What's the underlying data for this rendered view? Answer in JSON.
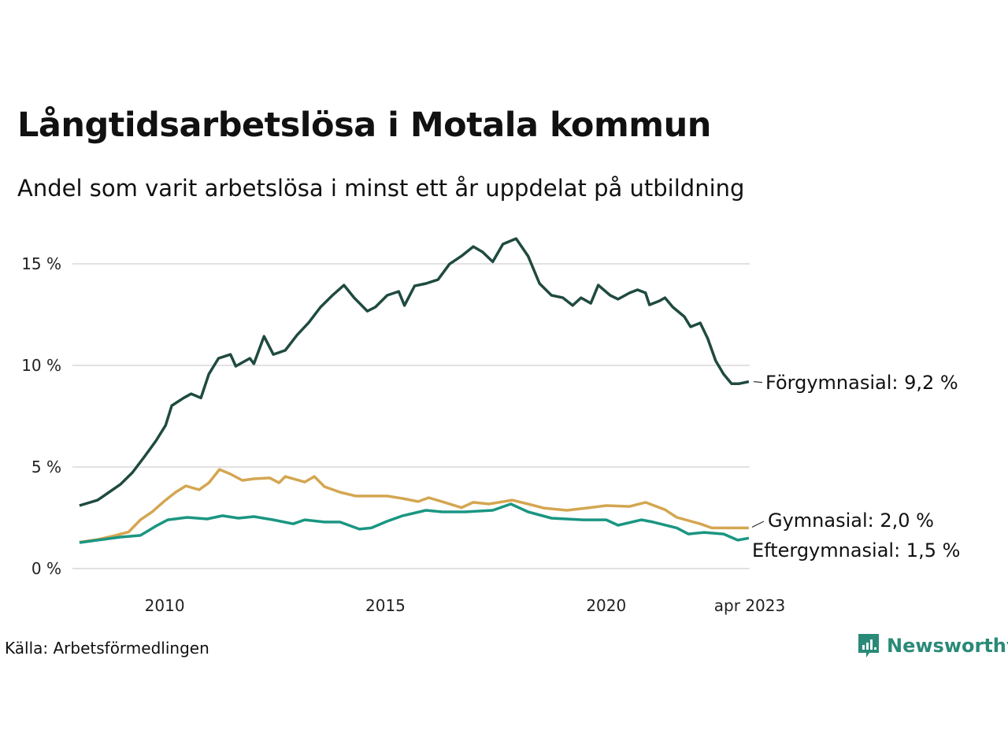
{
  "colors": {
    "forgymnasial": "#1f4a40",
    "gymnasial": "#d4a651",
    "eftergymnasial": "#1a9682",
    "grid": "#e2e2e2",
    "brand": "#2a8a78"
  },
  "source": "Källa: Arbetsförmedlingen",
  "brand": "Newsworthy",
  "chart_data": {
    "type": "line",
    "title": "Långtidsarbetslösa i Motala kommun",
    "subtitle": "Andel som varit arbetslösa i minst ett år uppdelat på utbildning",
    "xlabel": "",
    "ylabel": "",
    "xlim": [
      2008.0,
      2023.25
    ],
    "ylim": [
      0,
      16.5
    ],
    "grid": true,
    "x_ticks": [
      {
        "value": 2010,
        "label": "2010"
      },
      {
        "value": 2015,
        "label": "2015"
      },
      {
        "value": 2020,
        "label": "2020"
      },
      {
        "value": 2023.25,
        "label": "apr 2023"
      }
    ],
    "y_ticks": [
      {
        "value": 0,
        "label": "0 %"
      },
      {
        "value": 5,
        "label": "5 %"
      },
      {
        "value": 10,
        "label": "10 %"
      },
      {
        "value": 15,
        "label": "15 %"
      }
    ],
    "series": [
      {
        "name": "Förgymnasial",
        "key": "forgymnasial",
        "end_label": "Förgymnasial: 9,2 %",
        "points": [
          [
            2008.07,
            3.1
          ],
          [
            2008.48,
            3.37
          ],
          [
            2008.74,
            3.76
          ],
          [
            2009.0,
            4.15
          ],
          [
            2009.27,
            4.73
          ],
          [
            2009.54,
            5.5
          ],
          [
            2009.8,
            6.28
          ],
          [
            2010.02,
            7.05
          ],
          [
            2010.16,
            8.02
          ],
          [
            2010.43,
            8.4
          ],
          [
            2010.6,
            8.6
          ],
          [
            2010.82,
            8.4
          ],
          [
            2011.0,
            9.57
          ],
          [
            2011.22,
            10.35
          ],
          [
            2011.49,
            10.54
          ],
          [
            2011.61,
            9.96
          ],
          [
            2011.93,
            10.35
          ],
          [
            2012.02,
            10.08
          ],
          [
            2012.25,
            11.43
          ],
          [
            2012.46,
            10.54
          ],
          [
            2012.73,
            10.74
          ],
          [
            2013.0,
            11.5
          ],
          [
            2013.26,
            12.1
          ],
          [
            2013.53,
            12.87
          ],
          [
            2013.8,
            13.45
          ],
          [
            2014.06,
            13.95
          ],
          [
            2014.29,
            13.33
          ],
          [
            2014.59,
            12.67
          ],
          [
            2014.77,
            12.87
          ],
          [
            2015.04,
            13.45
          ],
          [
            2015.3,
            13.64
          ],
          [
            2015.43,
            12.95
          ],
          [
            2015.66,
            13.91
          ],
          [
            2015.92,
            14.03
          ],
          [
            2016.19,
            14.22
          ],
          [
            2016.45,
            14.99
          ],
          [
            2016.72,
            15.38
          ],
          [
            2016.99,
            15.85
          ],
          [
            2017.2,
            15.58
          ],
          [
            2017.43,
            15.1
          ],
          [
            2017.66,
            15.97
          ],
          [
            2017.96,
            16.24
          ],
          [
            2018.23,
            15.38
          ],
          [
            2018.49,
            14.03
          ],
          [
            2018.76,
            13.45
          ],
          [
            2019.02,
            13.33
          ],
          [
            2019.24,
            12.95
          ],
          [
            2019.43,
            13.33
          ],
          [
            2019.65,
            13.06
          ],
          [
            2019.82,
            13.95
          ],
          [
            2020.09,
            13.45
          ],
          [
            2020.27,
            13.26
          ],
          [
            2020.53,
            13.57
          ],
          [
            2020.71,
            13.72
          ],
          [
            2020.89,
            13.57
          ],
          [
            2020.98,
            12.98
          ],
          [
            2021.21,
            13.18
          ],
          [
            2021.33,
            13.33
          ],
          [
            2021.51,
            12.87
          ],
          [
            2021.77,
            12.4
          ],
          [
            2021.91,
            11.9
          ],
          [
            2022.13,
            12.09
          ],
          [
            2022.3,
            11.32
          ],
          [
            2022.48,
            10.23
          ],
          [
            2022.66,
            9.57
          ],
          [
            2022.84,
            9.1
          ],
          [
            2023.01,
            9.1
          ],
          [
            2023.23,
            9.2
          ]
        ]
      },
      {
        "name": "Gymnasial",
        "key": "gymnasial",
        "end_label": "Gymnasial: 2,0 %",
        "points": [
          [
            2008.07,
            1.3
          ],
          [
            2008.48,
            1.43
          ],
          [
            2008.83,
            1.6
          ],
          [
            2009.18,
            1.8
          ],
          [
            2009.45,
            2.4
          ],
          [
            2009.72,
            2.8
          ],
          [
            2009.98,
            3.3
          ],
          [
            2010.25,
            3.76
          ],
          [
            2010.48,
            4.07
          ],
          [
            2010.78,
            3.88
          ],
          [
            2011.0,
            4.22
          ],
          [
            2011.24,
            4.88
          ],
          [
            2011.49,
            4.65
          ],
          [
            2011.76,
            4.34
          ],
          [
            2012.02,
            4.42
          ],
          [
            2012.38,
            4.46
          ],
          [
            2012.59,
            4.22
          ],
          [
            2012.73,
            4.53
          ],
          [
            2013.17,
            4.26
          ],
          [
            2013.39,
            4.53
          ],
          [
            2013.62,
            4.03
          ],
          [
            2013.97,
            3.76
          ],
          [
            2014.33,
            3.57
          ],
          [
            2014.68,
            3.57
          ],
          [
            2015.04,
            3.57
          ],
          [
            2015.39,
            3.45
          ],
          [
            2015.74,
            3.3
          ],
          [
            2015.98,
            3.49
          ],
          [
            2016.28,
            3.3
          ],
          [
            2016.72,
            3.0
          ],
          [
            2016.99,
            3.26
          ],
          [
            2017.34,
            3.18
          ],
          [
            2017.87,
            3.37
          ],
          [
            2018.23,
            3.18
          ],
          [
            2018.58,
            2.98
          ],
          [
            2019.11,
            2.87
          ],
          [
            2019.56,
            2.98
          ],
          [
            2020.0,
            3.1
          ],
          [
            2020.53,
            3.06
          ],
          [
            2020.89,
            3.26
          ],
          [
            2021.33,
            2.9
          ],
          [
            2021.6,
            2.52
          ],
          [
            2022.13,
            2.2
          ],
          [
            2022.39,
            2.0
          ],
          [
            2022.84,
            2.0
          ],
          [
            2023.23,
            2.0
          ]
        ]
      },
      {
        "name": "Eftergymnasial",
        "key": "eftergymnasial",
        "end_label": "Eftergymnasial: 1,5 %",
        "points": [
          [
            2008.07,
            1.28
          ],
          [
            2008.48,
            1.4
          ],
          [
            2009.0,
            1.55
          ],
          [
            2009.45,
            1.63
          ],
          [
            2009.8,
            2.09
          ],
          [
            2010.07,
            2.4
          ],
          [
            2010.51,
            2.52
          ],
          [
            2010.96,
            2.44
          ],
          [
            2011.31,
            2.6
          ],
          [
            2011.67,
            2.48
          ],
          [
            2012.02,
            2.56
          ],
          [
            2012.46,
            2.4
          ],
          [
            2012.91,
            2.2
          ],
          [
            2013.17,
            2.4
          ],
          [
            2013.62,
            2.29
          ],
          [
            2013.97,
            2.29
          ],
          [
            2014.41,
            1.94
          ],
          [
            2014.68,
            2.0
          ],
          [
            2015.04,
            2.33
          ],
          [
            2015.39,
            2.6
          ],
          [
            2015.92,
            2.87
          ],
          [
            2016.28,
            2.79
          ],
          [
            2016.81,
            2.79
          ],
          [
            2017.43,
            2.87
          ],
          [
            2017.84,
            3.18
          ],
          [
            2018.23,
            2.79
          ],
          [
            2018.76,
            2.48
          ],
          [
            2019.47,
            2.4
          ],
          [
            2020.0,
            2.4
          ],
          [
            2020.27,
            2.13
          ],
          [
            2020.8,
            2.4
          ],
          [
            2021.06,
            2.29
          ],
          [
            2021.6,
            2.0
          ],
          [
            2021.86,
            1.7
          ],
          [
            2022.22,
            1.78
          ],
          [
            2022.66,
            1.7
          ],
          [
            2022.98,
            1.4
          ],
          [
            2023.23,
            1.5
          ]
        ]
      }
    ]
  }
}
